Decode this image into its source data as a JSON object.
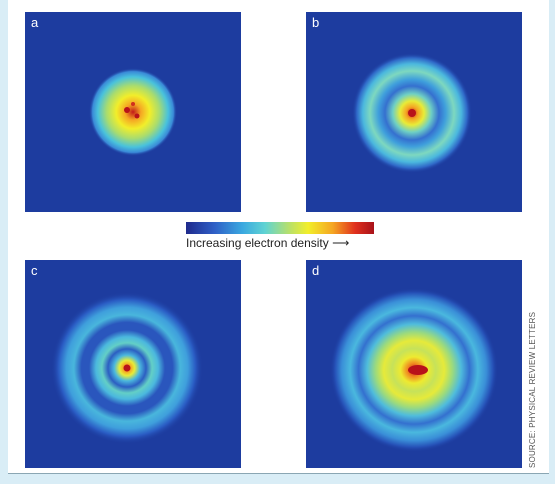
{
  "panels": [
    {
      "letter": "a",
      "rings": 0
    },
    {
      "letter": "b",
      "rings": 1
    },
    {
      "letter": "c",
      "rings": 2
    },
    {
      "letter": "d",
      "rings": 2
    }
  ],
  "colorbar": {
    "label": "Increasing electron density",
    "arrow": "⟶",
    "colors": [
      "#1f2a8c",
      "#2f5fc6",
      "#3aa8e0",
      "#5fd3d3",
      "#b8e06a",
      "#f2ee2a",
      "#f5a623",
      "#e0301e",
      "#a8121a"
    ]
  },
  "source": "SOURCE: PHYSICAL REVIEW LETTERS",
  "colors": {
    "background_blue": "#1d3c9f",
    "side_bar": "#d9edf6"
  }
}
